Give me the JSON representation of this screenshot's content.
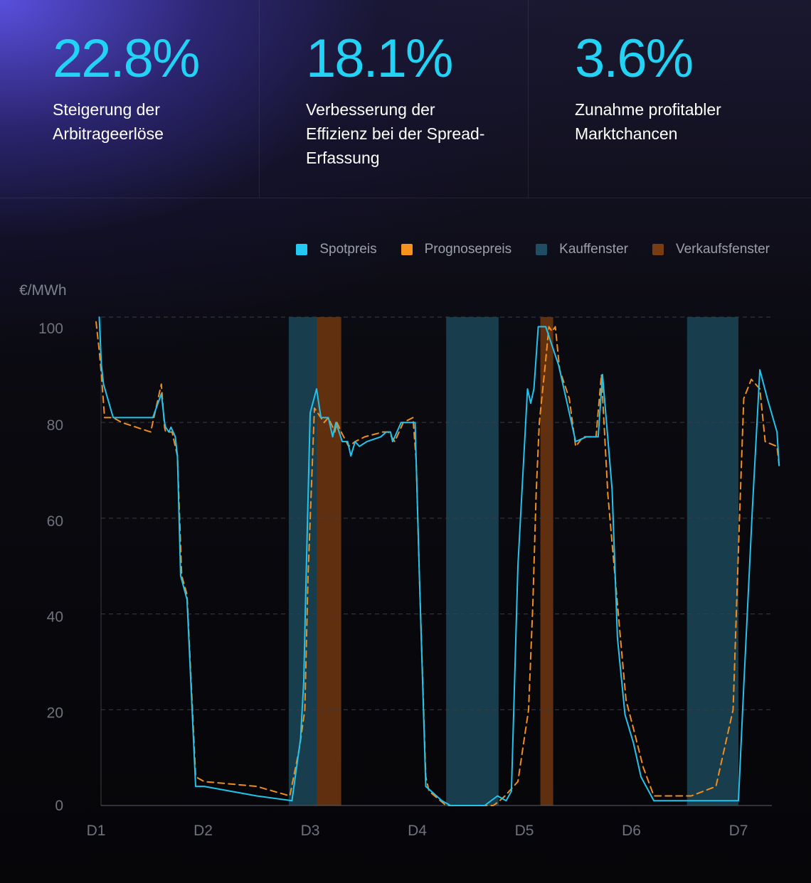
{
  "stats": [
    {
      "value": "22.8%",
      "label": "Steigerung der Arbitrageerlöse"
    },
    {
      "value": "18.1%",
      "label": "Verbesserung der Effizienz bei der Spread-Erfassung"
    },
    {
      "value": "3.6%",
      "label": "Zunahme profitabler Marktchancen"
    }
  ],
  "colors": {
    "accent": "#22d3f5",
    "spot": "#24c8ee",
    "forecast": "#f08d1e",
    "buy_window": "#1b4658",
    "sell_window": "#6a3410"
  },
  "chart_data": {
    "type": "line",
    "ylabel": "€/MWh",
    "ylim": [
      0,
      102
    ],
    "yticks": [
      0,
      20,
      40,
      60,
      80,
      100
    ],
    "xticks": [
      {
        "label": "D1",
        "x": 0
      },
      {
        "label": "D2",
        "x": 1
      },
      {
        "label": "D3",
        "x": 2
      },
      {
        "label": "D4",
        "x": 3
      },
      {
        "label": "D5",
        "x": 4
      },
      {
        "label": "D6",
        "x": 5
      },
      {
        "label": "D7",
        "x": 6
      }
    ],
    "xlim": [
      0,
      6.4
    ],
    "grid": true,
    "legend": "top-right",
    "legend_entries": [
      {
        "label": "Spotpreis",
        "color": "#22c9f2"
      },
      {
        "label": "Prognosepreis",
        "color": "#f7921e"
      },
      {
        "label": "Kauffenster",
        "color": "#1f4d63"
      },
      {
        "label": "Verkaufsfenster",
        "color": "#7a3c12"
      }
    ],
    "buy_windows": [
      [
        1.8,
        2.06
      ],
      [
        3.27,
        3.76
      ],
      [
        5.52,
        6.0
      ]
    ],
    "sell_windows": [
      [
        2.06,
        2.29
      ],
      [
        4.15,
        4.27
      ]
    ],
    "series": [
      {
        "name": "Spotpreis",
        "color": "#22c3ec",
        "dashed": false,
        "x": [
          0.03,
          0.05,
          0.07,
          0.16,
          0.24,
          0.53,
          0.61,
          0.64,
          0.65,
          0.68,
          0.7,
          0.72,
          0.74,
          0.76,
          0.79,
          0.85,
          0.93,
          0.96,
          1.01,
          1.5,
          1.83,
          1.91,
          1.94,
          1.96,
          2.0,
          2.06,
          2.1,
          2.17,
          2.21,
          2.24,
          2.3,
          2.35,
          2.38,
          2.42,
          2.46,
          2.53,
          2.66,
          2.71,
          2.75,
          2.77,
          2.85,
          2.94,
          2.98,
          3.02,
          3.08,
          3.23,
          3.31,
          3.37,
          3.52,
          3.63,
          3.75,
          3.83,
          3.88,
          3.94,
          4.03,
          4.06,
          4.09,
          4.13,
          4.15,
          4.2,
          4.26,
          4.29,
          4.32,
          4.4,
          4.48,
          4.58,
          4.69,
          4.73,
          4.82,
          4.87,
          4.94,
          5.02,
          5.09,
          5.21,
          5.29,
          5.33,
          5.34,
          5.35,
          5.52,
          6.0,
          6.05,
          6.13,
          6.2,
          6.27,
          6.36,
          6.38
        ],
        "y": [
          102,
          92,
          88,
          81,
          81,
          81,
          86,
          80,
          79,
          78,
          79,
          78,
          77,
          73,
          48,
          43,
          4,
          4,
          4,
          2,
          1,
          14,
          26,
          46,
          82,
          87,
          81,
          81,
          77,
          80,
          76,
          76,
          73,
          76,
          75,
          76,
          77,
          78,
          78,
          76,
          80,
          80,
          80,
          48,
          4,
          1,
          0,
          0,
          0,
          0,
          2,
          1,
          3,
          50,
          87,
          84,
          87,
          100,
          100,
          100,
          96,
          94,
          92,
          84,
          76,
          77,
          77,
          90,
          66,
          35,
          19,
          13,
          6,
          1,
          1,
          1,
          1,
          1,
          1,
          1,
          25,
          62,
          91,
          85,
          78,
          71
        ]
      },
      {
        "name": "Prognosepreis",
        "color": "#f08d1e",
        "dashed": true,
        "x": [
          0.0,
          0.03,
          0.05,
          0.08,
          0.16,
          0.24,
          0.51,
          0.61,
          0.64,
          0.65,
          0.69,
          0.71,
          0.74,
          0.76,
          0.8,
          0.85,
          0.93,
          1.01,
          1.5,
          1.81,
          1.9,
          1.95,
          1.98,
          2.04,
          2.07,
          2.13,
          2.17,
          2.23,
          2.25,
          2.29,
          2.36,
          2.42,
          2.51,
          2.68,
          2.73,
          2.79,
          2.87,
          2.96,
          2.99,
          3.02,
          3.08,
          3.11,
          3.27,
          3.36,
          3.52,
          3.71,
          3.77,
          3.82,
          3.94,
          4.04,
          4.08,
          4.11,
          4.14,
          4.2,
          4.23,
          4.26,
          4.29,
          4.33,
          4.42,
          4.48,
          4.55,
          4.67,
          4.72,
          4.78,
          4.89,
          4.95,
          5.02,
          5.11,
          5.21,
          5.31,
          5.34,
          5.36,
          5.48,
          5.52,
          5.56,
          5.79,
          5.95,
          6.01,
          6.05,
          6.12,
          6.2,
          6.25,
          6.36,
          6.38
        ],
        "y": [
          101,
          95,
          90,
          81,
          81,
          80,
          78,
          88,
          79,
          78,
          78,
          78,
          75,
          73,
          48,
          44,
          6,
          5,
          4,
          2,
          12,
          20,
          48,
          83,
          82,
          80,
          81,
          78,
          80,
          78,
          75,
          76,
          77,
          78,
          78,
          76,
          80,
          81,
          72,
          48,
          6,
          3,
          0,
          0,
          0,
          0,
          1,
          2,
          5,
          20,
          42,
          65,
          80,
          93,
          100,
          99,
          100,
          91,
          85,
          75,
          77,
          77,
          90,
          65,
          37,
          22,
          16,
          8,
          2,
          2,
          2,
          2,
          2,
          2,
          2,
          4,
          20,
          60,
          85,
          89,
          87,
          76,
          75,
          71
        ]
      }
    ]
  }
}
